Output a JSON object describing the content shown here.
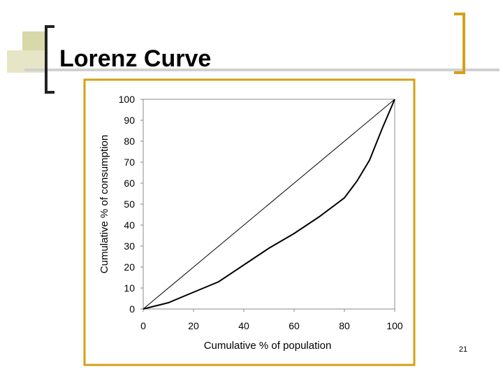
{
  "slide_title": "Lorenz Curve",
  "slide_number": "21",
  "chart_data": {
    "type": "line",
    "xlabel": "Cumulative % of population",
    "ylabel": "Cumulative % of consumption",
    "xlim": [
      0,
      100
    ],
    "ylim": [
      0,
      100
    ],
    "xticks": [
      0,
      20,
      40,
      60,
      80,
      100
    ],
    "yticks": [
      0,
      10,
      20,
      30,
      40,
      50,
      60,
      70,
      80,
      90,
      100
    ],
    "series": [
      {
        "color": "#000000",
        "x": [
          0,
          100
        ],
        "values": [
          0,
          100
        ]
      },
      {
        "color": "#000000",
        "x": [
          0,
          10,
          20,
          30,
          40,
          50,
          60,
          70,
          80,
          85,
          90,
          95,
          100
        ],
        "values": [
          0,
          3,
          8,
          13,
          21,
          29,
          36,
          44,
          53,
          61,
          71,
          86,
          100
        ]
      }
    ]
  }
}
